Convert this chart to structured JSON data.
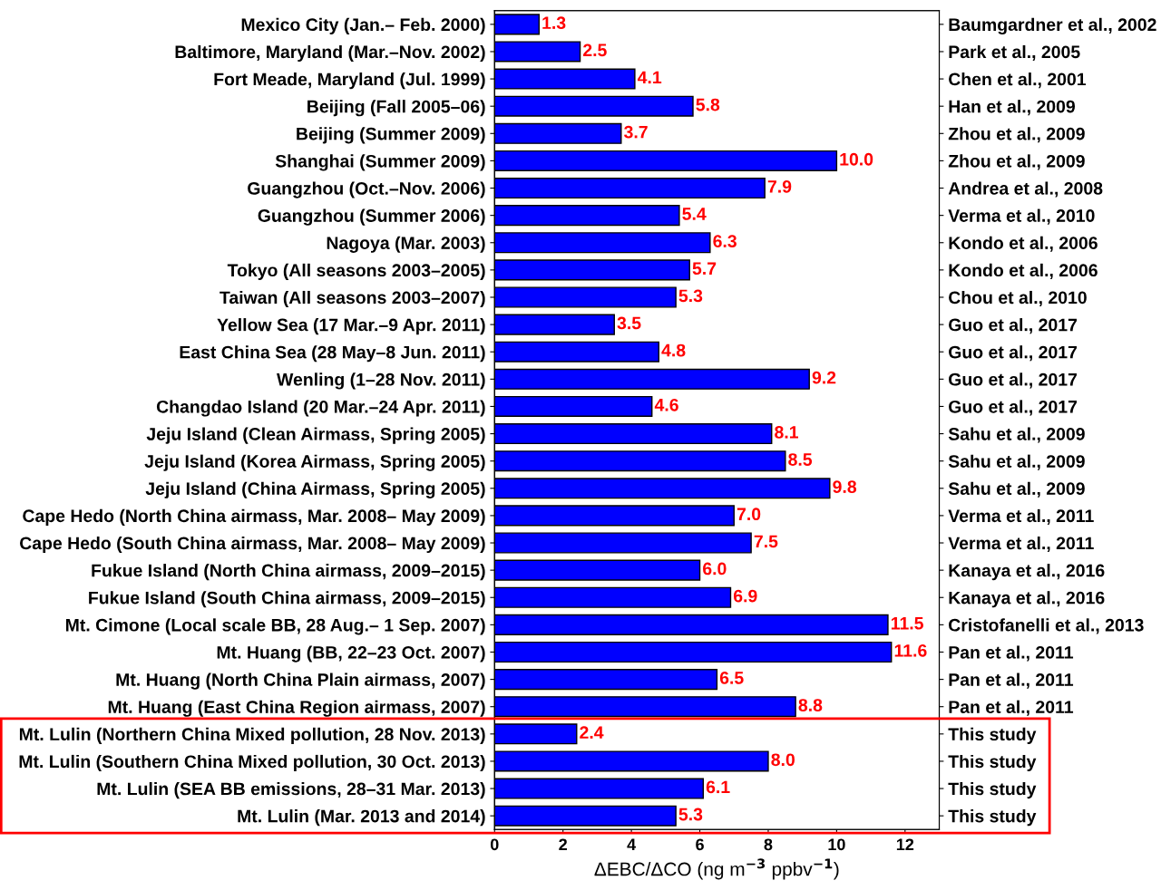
{
  "chart_data": {
    "type": "bar",
    "orientation": "horizontal",
    "categories": [
      "Mexico City (Jan.– Feb. 2000)",
      "Baltimore, Maryland (Mar.–Nov. 2002)",
      "Fort Meade, Maryland (Jul. 1999)",
      "Beijing (Fall 2005–06)",
      "Beijing (Summer 2009)",
      "Shanghai (Summer 2009)",
      "Guangzhou (Oct.–Nov. 2006)",
      "Guangzhou (Summer 2006)",
      "Nagoya (Mar. 2003)",
      "Tokyo (All seasons 2003–2005)",
      "Taiwan (All seasons 2003–2007)",
      "Yellow Sea (17 Mar.–9 Apr. 2011)",
      "East China Sea (28 May–8 Jun. 2011)",
      "Wenling (1–28 Nov. 2011)",
      "Changdao Island (20 Mar.–24 Apr. 2011)",
      "Jeju Island (Clean Airmass, Spring 2005)",
      "Jeju Island (Korea Airmass, Spring 2005)",
      "Jeju Island (China Airmass, Spring 2005)",
      "Cape Hedo (North China airmass, Mar. 2008– May 2009)",
      "Cape Hedo (South China airmass, Mar. 2008– May 2009)",
      "Fukue Island (North China airmass, 2009–2015)",
      "Fukue Island (South China airmass, 2009–2015)",
      "Mt. Cimone (Local scale BB, 28 Aug.– 1 Sep. 2007)",
      "Mt. Huang (BB, 22–23 Oct. 2007)",
      "Mt. Huang (North China Plain airmass, 2007)",
      "Mt. Huang (East China Region airmass, 2007)",
      "Mt. Lulin (Northern China Mixed pollution, 28 Nov. 2013)",
      "Mt. Lulin (Southern China Mixed pollution, 30 Oct. 2013)",
      "Mt. Lulin (SEA BB emissions, 28–31 Mar. 2013)",
      "Mt. Lulin (Mar. 2013 and 2014)"
    ],
    "y2_categories": [
      "Baumgardner et al., 2002",
      "Park et al., 2005",
      "Chen et al., 2001",
      "Han et al., 2009",
      "Zhou et al., 2009",
      "Zhou et al., 2009",
      "Andrea et al., 2008",
      "Verma et al., 2010",
      "Kondo et al., 2006",
      "Kondo et al., 2006",
      "Chou et al., 2010",
      "Guo et al., 2017",
      "Guo et al., 2017",
      "Guo et al., 2017",
      "Guo et al., 2017",
      "Sahu et al., 2009",
      "Sahu et al., 2009",
      "Sahu et al., 2009",
      "Verma et al., 2011",
      "Verma et al., 2011",
      "Kanaya et al., 2016",
      "Kanaya et al., 2016",
      "Cristofanelli et al., 2013",
      "Pan et al., 2011",
      "Pan et al., 2011",
      "Pan et al., 2011",
      "This study",
      "This study",
      "This study",
      "This study"
    ],
    "values": [
      1.3,
      2.5,
      4.1,
      5.8,
      3.7,
      10.0,
      7.9,
      5.4,
      6.3,
      5.7,
      5.3,
      3.5,
      4.8,
      9.2,
      4.6,
      8.1,
      8.5,
      9.8,
      7.0,
      7.5,
      6.0,
      6.9,
      11.5,
      11.6,
      6.5,
      8.8,
      2.4,
      8.0,
      6.1,
      5.3
    ],
    "value_labels": [
      "1.3",
      "2.5",
      "4.1",
      "5.8",
      "3.7",
      "10.0",
      "7.9",
      "5.4",
      "6.3",
      "5.7",
      "5.3",
      "3.5",
      "4.8",
      "9.2",
      "4.6",
      "8.1",
      "8.5",
      "9.8",
      "7.0",
      "7.5",
      "6.0",
      "6.9",
      "11.5",
      "11.6",
      "6.5",
      "8.8",
      "2.4",
      "8.0",
      "6.1",
      "5.3"
    ],
    "color": "#0000ff",
    "xlabel": "ΔEBC/ΔCO (ng m$^{−3}$ ppbv$^{−1}$)",
    "xlim": [
      0,
      13
    ],
    "xticks": [
      0,
      2,
      4,
      6,
      8,
      10,
      12
    ],
    "grid": false
  }
}
